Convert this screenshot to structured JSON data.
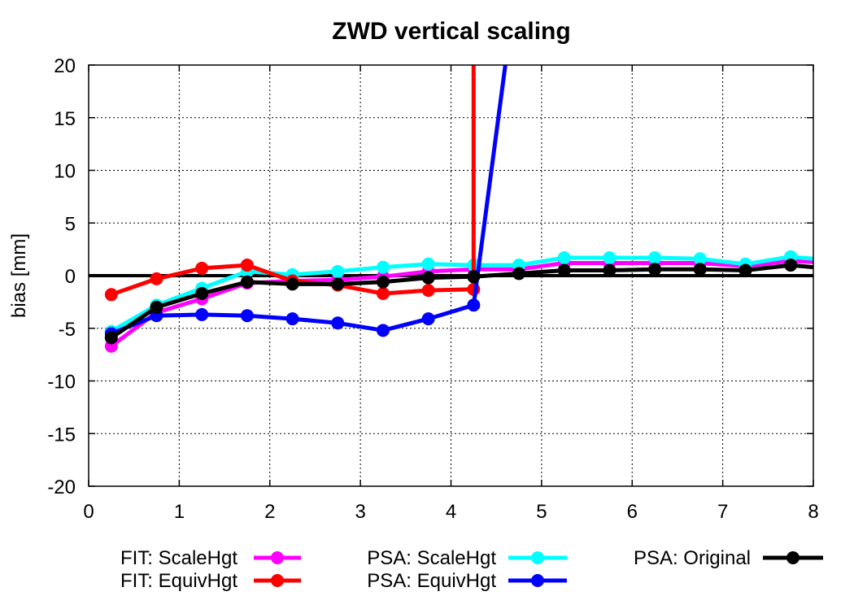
{
  "chart_data": {
    "type": "line",
    "title": "ZWD vertical scaling",
    "xlabel": "",
    "ylabel": "bias [mm]",
    "xlim": [
      0,
      8
    ],
    "ylim": [
      -20,
      20
    ],
    "xticks": [
      "0",
      "1",
      "2",
      "3",
      "4",
      "5",
      "6",
      "7",
      "8"
    ],
    "yticks": [
      "-20",
      "-15",
      "-10",
      "-5",
      "0",
      "5",
      "10",
      "15",
      "20"
    ],
    "grid": true,
    "legend_position": "bottom",
    "series": [
      {
        "name": "FIT: ScaleHgt",
        "color": "#ff00ff",
        "x": [
          0.25,
          0.75,
          1.25,
          1.75,
          2.25,
          2.75,
          3.25,
          3.75,
          4.25,
          4.75,
          5.25,
          5.75,
          6.25,
          6.75,
          7.25,
          7.75,
          8.0
        ],
        "y": [
          -6.7,
          -3.5,
          -2.2,
          -0.7,
          -0.5,
          -0.4,
          -0.1,
          0.4,
          0.6,
          0.6,
          1.2,
          1.2,
          1.2,
          1.2,
          0.9,
          1.4,
          1.3
        ]
      },
      {
        "name": "PSA: ScaleHgt",
        "color": "#00ffff",
        "x": [
          0.25,
          0.75,
          1.25,
          1.75,
          2.25,
          2.75,
          3.25,
          3.75,
          4.25,
          4.75,
          5.25,
          5.75,
          6.25,
          6.75,
          7.25,
          7.75,
          8.0
        ],
        "y": [
          -5.3,
          -2.8,
          -1.2,
          0.4,
          0.1,
          0.4,
          0.8,
          1.1,
          1.0,
          1.0,
          1.7,
          1.7,
          1.7,
          1.6,
          1.1,
          1.8,
          1.6
        ]
      },
      {
        "name": "FIT: EquivHgt",
        "color": "#ff0000",
        "x": [
          0.25,
          0.75,
          1.25,
          1.75,
          2.25,
          2.75,
          3.25,
          3.75,
          4.25,
          4.25
        ],
        "y": [
          -1.8,
          -0.3,
          0.7,
          1.0,
          -0.5,
          -0.9,
          -1.7,
          -1.4,
          -1.3,
          20
        ]
      },
      {
        "name": "PSA: EquivHgt",
        "color": "#0000ff",
        "x": [
          0.25,
          0.75,
          1.25,
          1.75,
          2.25,
          2.75,
          3.25,
          3.75,
          4.25,
          4.6
        ],
        "y": [
          -5.5,
          -3.8,
          -3.7,
          -3.8,
          -4.1,
          -4.5,
          -5.2,
          -4.1,
          -2.8,
          20
        ]
      },
      {
        "name": "PSA: Original",
        "color": "#000000",
        "x": [
          0.25,
          0.75,
          1.25,
          1.75,
          2.25,
          2.75,
          3.25,
          3.75,
          4.25,
          4.75,
          5.25,
          5.75,
          6.25,
          6.75,
          7.25,
          7.75,
          8.0
        ],
        "y": [
          -5.9,
          -3.0,
          -1.7,
          -0.6,
          -0.8,
          -0.8,
          -0.6,
          -0.2,
          -0.1,
          0.2,
          0.5,
          0.5,
          0.6,
          0.6,
          0.5,
          1.0,
          0.8
        ]
      }
    ]
  }
}
